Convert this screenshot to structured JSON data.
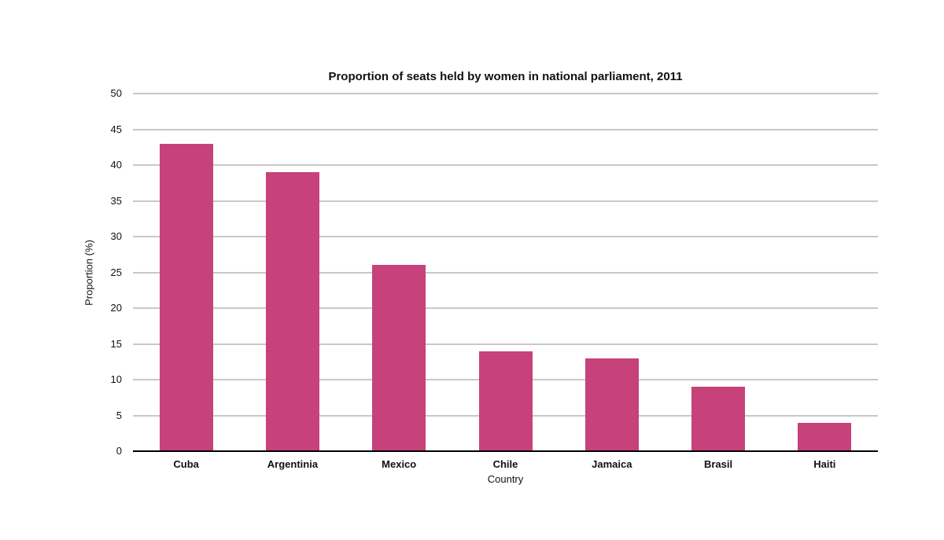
{
  "chart_data": {
    "type": "bar",
    "title": "Proportion of seats held by women in national parliament, 2011",
    "categories": [
      "Cuba",
      "Argentinia",
      "Mexico",
      "Chile",
      "Jamaica",
      "Brasil",
      "Haiti"
    ],
    "values": [
      43,
      39,
      26,
      14,
      13,
      9,
      4
    ],
    "xlabel": "Country",
    "ylabel": "Proportion (%)",
    "ylim": [
      0,
      50
    ],
    "ytick_step": 5,
    "yticks": [
      0,
      5,
      10,
      15,
      20,
      25,
      30,
      35,
      40,
      45,
      50
    ],
    "grid": true,
    "legend": "none",
    "colors": {
      "bar": "#C7417B",
      "gridline": "#C8C8C8",
      "axis_line": "#000000",
      "text": "#111111",
      "background": "#FFFFFF"
    }
  }
}
